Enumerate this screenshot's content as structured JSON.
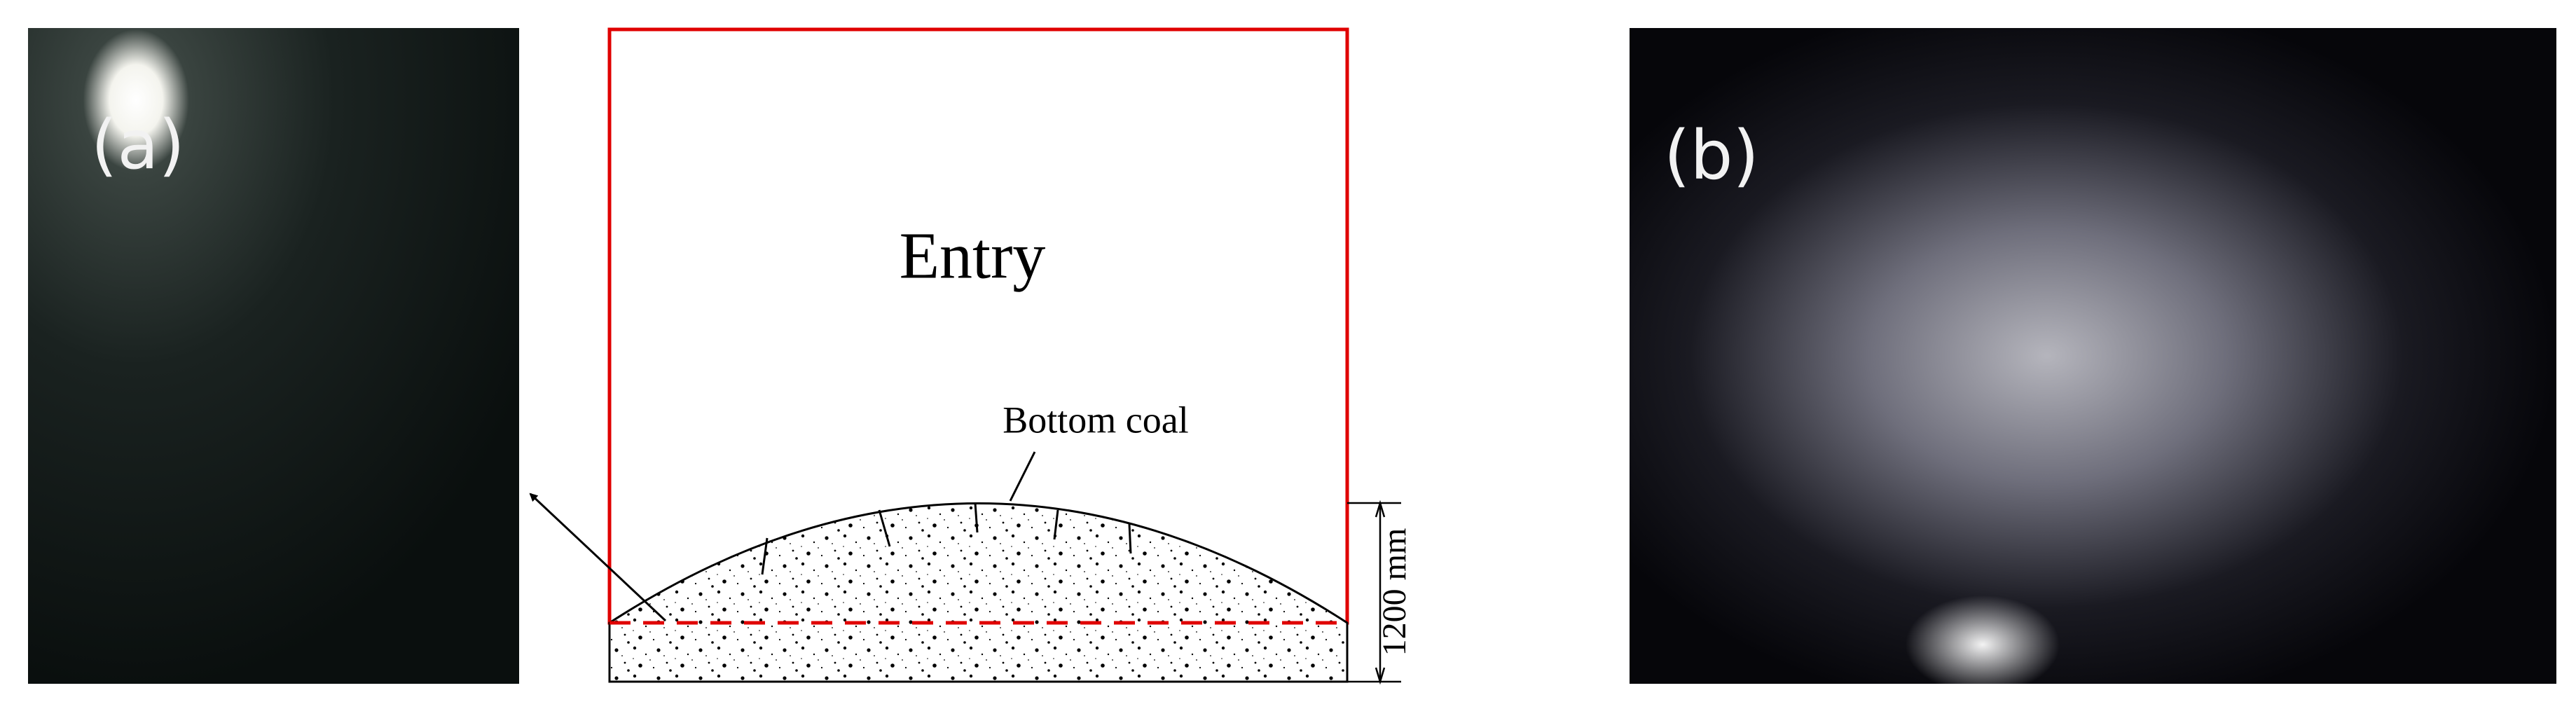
{
  "panel_a": {
    "label": "(a)"
  },
  "diagram": {
    "entry_label": "Entry",
    "bottom_coal_label": "Bottom coal",
    "dimension_label": "1200 mm"
  },
  "panel_b": {
    "label": "(b)"
  }
}
